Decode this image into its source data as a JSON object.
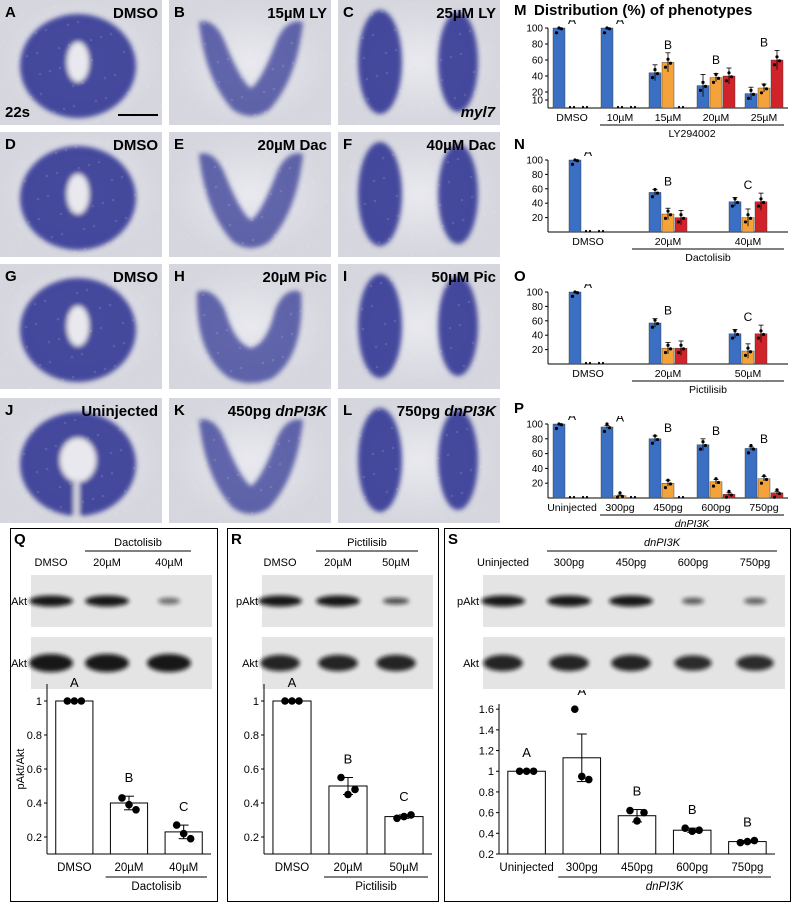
{
  "micrographs": [
    {
      "id": "A",
      "label": "DMSO",
      "extra": "22s",
      "shape": "ring"
    },
    {
      "id": "B",
      "label": "15µM LY",
      "shape": "v"
    },
    {
      "id": "C",
      "label": "25µM LY",
      "extra": "myl7",
      "shape": "split"
    },
    {
      "id": "D",
      "label": "DMSO",
      "shape": "ring"
    },
    {
      "id": "E",
      "label": "20µM Dac",
      "shape": "v"
    },
    {
      "id": "F",
      "label": "40µM Dac",
      "shape": "split"
    },
    {
      "id": "G",
      "label": "DMSO",
      "shape": "ring"
    },
    {
      "id": "H",
      "label": "20µM Pic",
      "shape": "u"
    },
    {
      "id": "I",
      "label": "50µM Pic",
      "shape": "split"
    },
    {
      "id": "J",
      "label": "Uninjected",
      "shape": "ring"
    },
    {
      "id": "K",
      "label": "450pg",
      "label_italic": "dnPI3K",
      "shape": "v"
    },
    {
      "id": "L",
      "label": "750pg",
      "label_italic": "dnPI3K",
      "shape": "split"
    }
  ],
  "colors": {
    "blue": "#3A6FC4",
    "orange": "#F4A23A",
    "red": "#D1232A",
    "stain": "#2B2F8F"
  },
  "panel_M": {
    "letter": "M",
    "title": "Distribution (%) of phenotypes"
  },
  "panel_N": {
    "letter": "N"
  },
  "panel_O": {
    "letter": "O"
  },
  "panel_P": {
    "letter": "P"
  },
  "chart_data": [
    {
      "panel": "M",
      "type": "bar",
      "categories": [
        "DMSO",
        "10µM",
        "15µM",
        "20µM",
        "25µM"
      ],
      "group_label": "LY294002",
      "group_span": [
        1,
        4
      ],
      "series": [
        {
          "values": [
            100,
            100,
            44,
            28,
            18
          ]
        },
        {
          "values": [
            0,
            0,
            57,
            38,
            25
          ]
        },
        {
          "values": [
            0,
            0,
            0,
            40,
            60
          ]
        }
      ],
      "errors": [
        [
          0,
          0,
          10,
          14,
          8
        ],
        [
          0,
          0,
          12,
          5,
          5
        ],
        [
          0,
          0,
          0,
          10,
          12
        ]
      ],
      "letters": [
        "A",
        "A",
        "B",
        "B",
        "B"
      ],
      "yticks": [
        10,
        20,
        40,
        60,
        80,
        100
      ],
      "ylim": [
        0,
        100
      ]
    },
    {
      "panel": "N",
      "type": "bar",
      "categories": [
        "DMSO",
        "20µM",
        "40µM"
      ],
      "group_label": "Dactolisib",
      "group_span": [
        1,
        2
      ],
      "series": [
        {
          "values": [
            100,
            55,
            42
          ]
        },
        {
          "values": [
            0,
            25,
            20
          ]
        },
        {
          "values": [
            0,
            20,
            42
          ]
        }
      ],
      "errors": [
        [
          0,
          4,
          6
        ],
        [
          0,
          8,
          12
        ],
        [
          0,
          10,
          12
        ]
      ],
      "letters": [
        "A",
        "B",
        "C"
      ],
      "yticks": [
        20,
        40,
        60,
        80,
        100
      ],
      "ylim": [
        0,
        100
      ]
    },
    {
      "panel": "O",
      "type": "bar",
      "categories": [
        "DMSO",
        "20µM",
        "50µM"
      ],
      "group_label": "Pictilisib",
      "group_span": [
        1,
        2
      ],
      "series": [
        {
          "values": [
            100,
            57,
            42
          ]
        },
        {
          "values": [
            0,
            22,
            18
          ]
        },
        {
          "values": [
            0,
            22,
            42
          ]
        }
      ],
      "errors": [
        [
          0,
          6,
          6
        ],
        [
          0,
          8,
          10
        ],
        [
          0,
          10,
          12
        ]
      ],
      "letters": [
        "A",
        "B",
        "C"
      ],
      "yticks": [
        20,
        40,
        60,
        80,
        100
      ],
      "ylim": [
        0,
        100
      ]
    },
    {
      "panel": "P",
      "type": "bar",
      "categories": [
        "Uninjected",
        "300pg",
        "450pg",
        "600pg",
        "750pg"
      ],
      "group_label": "dnPI3K",
      "group_span": [
        1,
        4
      ],
      "series": [
        {
          "values": [
            100,
            96,
            80,
            72,
            67
          ]
        },
        {
          "values": [
            0,
            3,
            20,
            22,
            26
          ]
        },
        {
          "values": [
            0,
            0,
            0,
            5,
            7
          ]
        }
      ],
      "errors": [
        [
          0,
          2,
          4,
          8,
          2
        ],
        [
          0,
          1,
          4,
          3,
          3
        ],
        [
          0,
          0,
          0,
          2,
          2
        ]
      ],
      "letters": [
        "A",
        "A",
        "B",
        "B",
        "B"
      ],
      "yticks": [
        20,
        40,
        60,
        80,
        100
      ],
      "ylim": [
        0,
        100
      ]
    },
    {
      "panel": "Q",
      "type": "bar",
      "categories": [
        "DMSO",
        "20µM",
        "40µM"
      ],
      "group_label": "Dactolisib",
      "values": [
        1.0,
        0.4,
        0.23
      ],
      "errors": [
        0,
        0.04,
        0.04
      ],
      "points": [
        [
          1,
          1,
          1
        ],
        [
          0.43,
          0.39,
          0.36
        ],
        [
          0.27,
          0.22,
          0.19
        ]
      ],
      "letters": [
        "A",
        "B",
        "C"
      ],
      "ylabel": "pAkt/Akt",
      "yticks": [
        0.2,
        0.4,
        0.6,
        0.8,
        1
      ],
      "ylim": [
        0.1,
        1.1
      ]
    },
    {
      "panel": "R",
      "type": "bar",
      "categories": [
        "DMSO",
        "20µM",
        "50µM"
      ],
      "group_label": "Pictilisib",
      "values": [
        1.0,
        0.5,
        0.32
      ],
      "errors": [
        0,
        0.05,
        0.01
      ],
      "points": [
        [
          1,
          1,
          1
        ],
        [
          0.55,
          0.45,
          0.48
        ],
        [
          0.31,
          0.32,
          0.33
        ]
      ],
      "letters": [
        "A",
        "B",
        "C"
      ],
      "yticks": [
        0.2,
        0.4,
        0.6,
        0.8,
        1
      ],
      "ylim": [
        0.1,
        1.1
      ]
    },
    {
      "panel": "S",
      "type": "bar",
      "categories": [
        "Uninjected",
        "300pg",
        "450pg",
        "600pg",
        "750pg"
      ],
      "group_label": "dnPI3K",
      "values": [
        1.0,
        1.13,
        0.57,
        0.43,
        0.32
      ],
      "errors": [
        0,
        0.23,
        0.06,
        0.02,
        0.01
      ],
      "points": [
        [
          1,
          1,
          1
        ],
        [
          1.6,
          0.95,
          0.92
        ],
        [
          0.62,
          0.52,
          0.6
        ],
        [
          0.45,
          0.42,
          0.43
        ],
        [
          0.31,
          0.32,
          0.33
        ]
      ],
      "letters": [
        "A",
        "A",
        "B",
        "B",
        "B"
      ],
      "yticks": [
        0.2,
        0.4,
        0.6,
        0.8,
        1,
        1.2,
        1.4,
        1.6
      ],
      "ylim": [
        0.2,
        1.65
      ]
    }
  ],
  "blot_Q": {
    "letter": "Q",
    "group": "Dactolisib",
    "lanes": [
      "DMSO",
      "20µM",
      "40µM"
    ],
    "rows": [
      "pAkt",
      "Akt"
    ],
    "intensity": [
      [
        1,
        1,
        0.35
      ],
      [
        1,
        1,
        1
      ]
    ]
  },
  "blot_R": {
    "letter": "R",
    "group": "Pictilisib",
    "lanes": [
      "DMSO",
      "20µM",
      "50µM"
    ],
    "rows": [
      "pAkt",
      "Akt"
    ],
    "intensity": [
      [
        1,
        1,
        0.6
      ],
      [
        0.9,
        0.9,
        0.9
      ]
    ]
  },
  "blot_S": {
    "letter": "S",
    "group": "dnPI3K",
    "lanes": [
      "Uninjected",
      "300pg",
      "450pg",
      "600pg",
      "750pg"
    ],
    "rows": [
      "pAkt",
      "Akt"
    ],
    "intensity": [
      [
        1,
        1,
        1,
        0.5,
        0.45
      ],
      [
        0.9,
        0.9,
        0.9,
        0.85,
        0.85
      ]
    ]
  }
}
